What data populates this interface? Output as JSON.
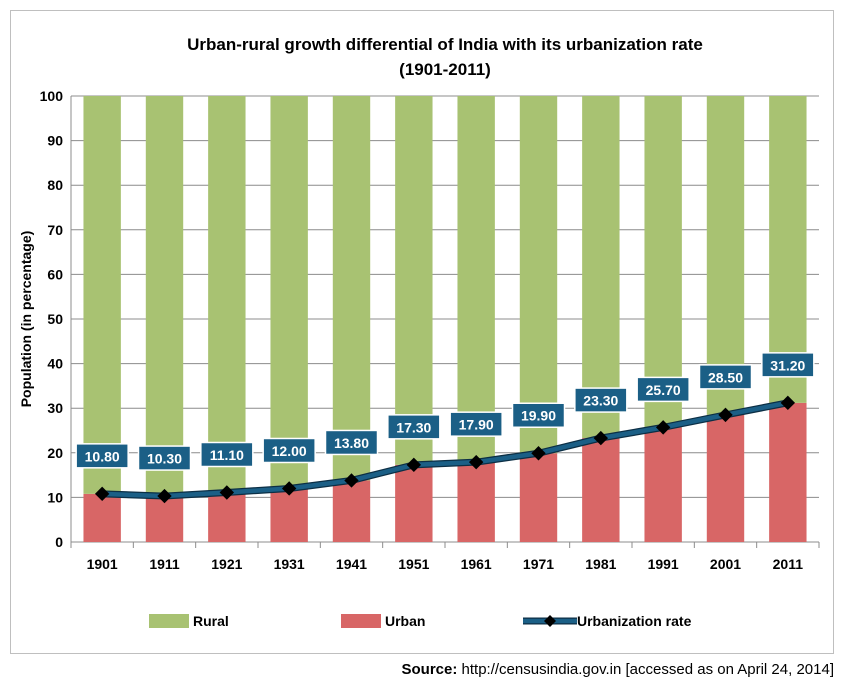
{
  "chart_data": {
    "type": "bar",
    "stacked": true,
    "title": "Urban-rural growth differential of India with its urbanization rate",
    "subtitle": "(1901-2011)",
    "ylabel": "Population (in percentage)",
    "xlabel": "",
    "ylim": [
      0,
      100
    ],
    "yticks": [
      0,
      10,
      20,
      30,
      40,
      50,
      60,
      70,
      80,
      90,
      100
    ],
    "grid": true,
    "legend_position": "bottom",
    "categories": [
      "1901",
      "1911",
      "1921",
      "1931",
      "1941",
      "1951",
      "1961",
      "1971",
      "1981",
      "1991",
      "2001",
      "2011"
    ],
    "series": [
      {
        "name": "Rural",
        "kind": "bar",
        "color": "#a8c272",
        "values": [
          89.2,
          89.7,
          88.9,
          88.0,
          86.2,
          82.7,
          82.1,
          80.1,
          76.7,
          74.3,
          71.5,
          68.8
        ]
      },
      {
        "name": "Urban",
        "kind": "bar",
        "color": "#d86666",
        "values": [
          10.8,
          10.3,
          11.1,
          12.0,
          13.8,
          17.3,
          17.9,
          19.9,
          23.3,
          25.7,
          28.5,
          31.2
        ]
      },
      {
        "name": "Urbanization rate",
        "kind": "line",
        "color": "#1b5f86",
        "marker": "diamond",
        "values": [
          10.8,
          10.3,
          11.1,
          12.0,
          13.8,
          17.3,
          17.9,
          19.9,
          23.3,
          25.7,
          28.5,
          31.2
        ],
        "labels": [
          "10.80",
          "10.30",
          "11.10",
          "12.00",
          "13.80",
          "17.30",
          "17.90",
          "19.90",
          "23.30",
          "25.70",
          "28.50",
          "31.20"
        ]
      }
    ]
  },
  "source": {
    "label": "Source:",
    "text": " http://censusindia.gov.in [accessed as on April 24, 2014]"
  }
}
